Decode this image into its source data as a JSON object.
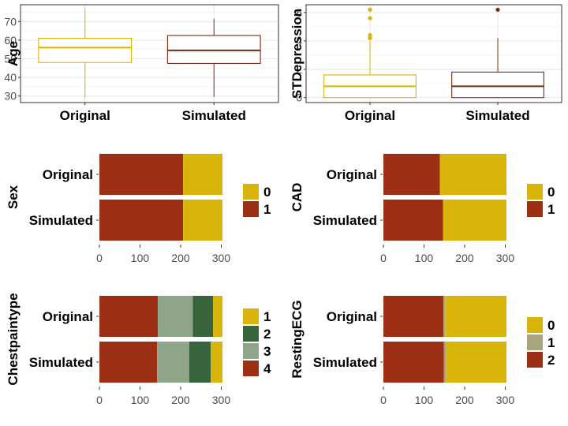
{
  "colors": {
    "original": "#d8b400",
    "simulated": "#7a2a10",
    "grid": "#e6e6e6",
    "axis": "#333333"
  },
  "chart_data": [
    {
      "type": "box",
      "ylabel": "Age",
      "categories": [
        "Original",
        "Simulated"
      ],
      "ylim": [
        26.5,
        79
      ],
      "yticks": [
        30,
        40,
        50,
        60,
        70
      ],
      "boxes": [
        {
          "name": "Original",
          "min": 29,
          "q1": 48,
          "median": 56,
          "q3": 61,
          "max": 77,
          "outliers": []
        },
        {
          "name": "Simulated",
          "min": 29.5,
          "q1": 47.5,
          "median": 54.5,
          "q3": 62.5,
          "max": 71.5,
          "outliers": []
        }
      ]
    },
    {
      "type": "box",
      "ylabel": "STDepression",
      "categories": [
        "Original",
        "Simulated"
      ],
      "ylim": [
        -0.35,
        6.55
      ],
      "yticks": [
        0,
        2,
        4,
        6
      ],
      "boxes": [
        {
          "name": "Original",
          "min": 0,
          "q1": 0,
          "median": 0.8,
          "q3": 1.6,
          "max": 4.0,
          "outliers": [
            4.2,
            4.4,
            5.6,
            6.2
          ]
        },
        {
          "name": "Simulated",
          "min": 0,
          "q1": 0,
          "median": 0.8,
          "q3": 1.8,
          "max": 4.2,
          "outliers": [
            6.2
          ]
        }
      ]
    },
    {
      "type": "bar",
      "orientation": "horizontal",
      "stacked": true,
      "ylabel": "Sex",
      "categories": [
        "Original",
        "Simulated"
      ],
      "xlim": [
        0,
        303
      ],
      "xticks": [
        0,
        100,
        200,
        300
      ],
      "legend_title": "",
      "series": [
        {
          "name": "1",
          "color": "#9c2f14",
          "values": [
            206,
            206
          ]
        },
        {
          "name": "0",
          "color": "#d9b50a",
          "values": [
            97,
            97
          ]
        }
      ],
      "legend_order": [
        "0",
        "1"
      ]
    },
    {
      "type": "bar",
      "orientation": "horizontal",
      "stacked": true,
      "ylabel": "CAD",
      "categories": [
        "Original",
        "Simulated"
      ],
      "xlim": [
        0,
        303
      ],
      "xticks": [
        0,
        100,
        200,
        300
      ],
      "legend_title": "",
      "series": [
        {
          "name": "1",
          "color": "#9c2f14",
          "values": [
            139,
            147
          ]
        },
        {
          "name": "0",
          "color": "#d9b50a",
          "values": [
            164,
            156
          ]
        }
      ],
      "legend_order": [
        "0",
        "1"
      ]
    },
    {
      "type": "bar",
      "orientation": "horizontal",
      "stacked": true,
      "ylabel": "Chestpaintype",
      "categories": [
        "Original",
        "Simulated"
      ],
      "xlim": [
        0,
        303
      ],
      "xticks": [
        0,
        100,
        200,
        300
      ],
      "legend_title": "",
      "series": [
        {
          "name": "4",
          "color": "#9c2f14",
          "values": [
            144,
            142
          ]
        },
        {
          "name": "3",
          "color": "#8fa58a",
          "values": [
            86,
            79
          ]
        },
        {
          "name": "2",
          "color": "#37643a",
          "values": [
            50,
            53
          ]
        },
        {
          "name": "1",
          "color": "#d9b50a",
          "values": [
            23,
            29
          ]
        }
      ],
      "legend_order": [
        "1",
        "2",
        "3",
        "4"
      ]
    },
    {
      "type": "bar",
      "orientation": "horizontal",
      "stacked": true,
      "ylabel": "RestingECG",
      "categories": [
        "Original",
        "Simulated"
      ],
      "xlim": [
        0,
        303
      ],
      "xticks": [
        0,
        100,
        200,
        300
      ],
      "legend_title": "",
      "series": [
        {
          "name": "2",
          "color": "#9c2f14",
          "values": [
            148,
            149
          ]
        },
        {
          "name": "1",
          "color": "#a8a47c",
          "values": [
            4,
            5
          ]
        },
        {
          "name": "0",
          "color": "#d9b50a",
          "values": [
            151,
            149
          ]
        }
      ],
      "legend_order": [
        "0",
        "1",
        "2"
      ]
    }
  ]
}
